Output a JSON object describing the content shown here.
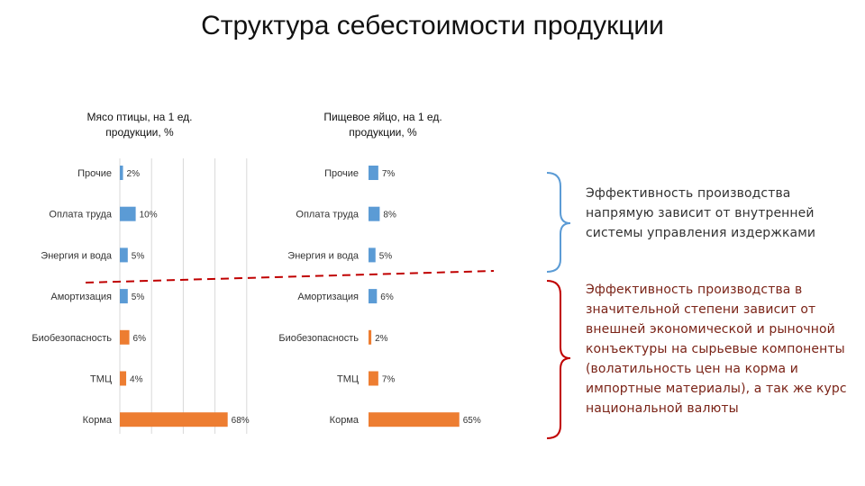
{
  "slide_title": "Структура себестоимости продукции",
  "colors": {
    "blue": "#5b9bd5",
    "orange": "#ed7d31",
    "grid": "#d9d9d9",
    "divider": "#c00000",
    "brace_top": "#5b9bd5",
    "brace_bottom": "#c00000",
    "note_top": "#333333",
    "note_bottom": "#7b2418"
  },
  "chart_data": [
    {
      "type": "bar",
      "orientation": "horizontal",
      "title": "Мясо птицы, на 1 ед. продукции, %",
      "categories": [
        "Прочие",
        "Оплата труда",
        "Энергия и вода",
        "Амортизация",
        "Биобезопасность",
        "ТМЦ",
        "Корма"
      ],
      "values": [
        2,
        10,
        5,
        5,
        6,
        4,
        68
      ],
      "value_labels": [
        "2%",
        "10%",
        "5%",
        "5%",
        "6%",
        "4%",
        "68%"
      ],
      "bar_colors": [
        "blue",
        "blue",
        "blue",
        "blue",
        "orange",
        "orange",
        "orange"
      ],
      "xlim": [
        0,
        80
      ],
      "grid": true
    },
    {
      "type": "bar",
      "orientation": "horizontal",
      "title": "Пищевое яйцо, на 1 ед. продукции, %",
      "categories": [
        "Прочие",
        "Оплата труда",
        "Энергия и вода",
        "Амортизация",
        "Биобезопасность",
        "ТМЦ",
        "Корма"
      ],
      "values": [
        7,
        8,
        5,
        6,
        2,
        7,
        65
      ],
      "value_labels": [
        "7%",
        "8%",
        "5%",
        "6%",
        "2%",
        "7%",
        "65%"
      ],
      "bar_colors": [
        "blue",
        "blue",
        "blue",
        "blue",
        "orange",
        "orange",
        "orange"
      ],
      "xlim": [
        0,
        80
      ],
      "grid": false
    }
  ],
  "notes": {
    "top": "Эффективность производства напрямую зависит от внутренней системы управления издержками",
    "bottom": "Эффективность производства в значительной степени зависит от внешней экономической и рыночной конъектуры на сырьевые компоненты (волатильность цен на корма и импортные материалы), а так же курс национальной валюты"
  }
}
